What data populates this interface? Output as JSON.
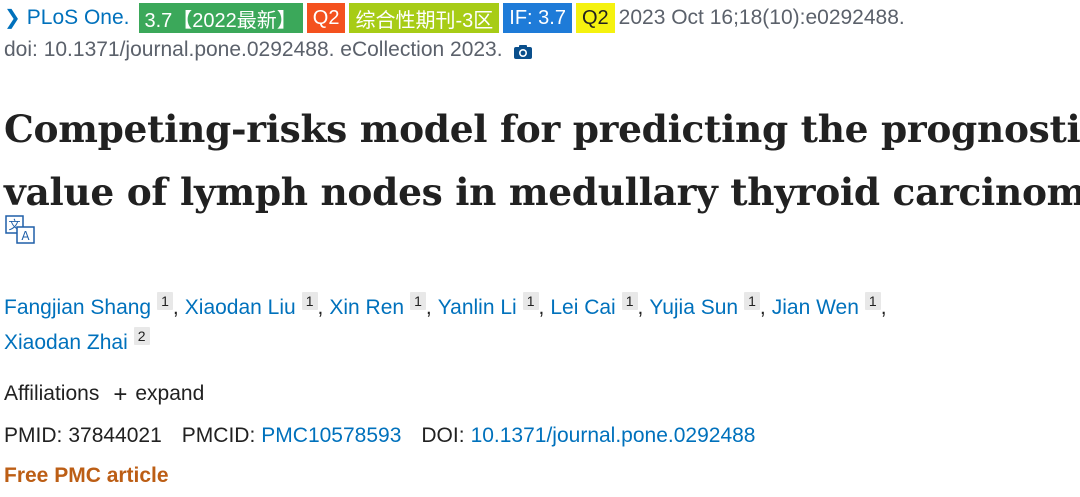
{
  "citation": {
    "chevron_icon": "chevron-right-icon",
    "journal": "PLoS One.",
    "badges": [
      {
        "label": "3.7【2022最新】",
        "color": "#3ba85a"
      },
      {
        "label": "Q2",
        "color": "#f4511e"
      },
      {
        "label": "综合性期刊-3区",
        "color": "#a7cc16"
      },
      {
        "label": "IF: 3.7",
        "color": "#1e7bd8"
      },
      {
        "label": "Q2",
        "color": "#f5f20f"
      }
    ],
    "date_volume": "2023 Oct 16;18(10):e0292488.",
    "doi_line": "doi: 10.1371/journal.pone.0292488. eCollection 2023.",
    "camera_icon": "camera-icon"
  },
  "article": {
    "title_line1": "Competing-risks model for predicting the prognostic",
    "title_line2": "value of lymph nodes in medullary thyroid carcinoma",
    "translate_icon": "translate-icon"
  },
  "authors": [
    {
      "name": "Fangjian Shang",
      "aff": "1"
    },
    {
      "name": "Xiaodan Liu",
      "aff": "1"
    },
    {
      "name": "Xin Ren",
      "aff": "1"
    },
    {
      "name": "Yanlin Li",
      "aff": "1"
    },
    {
      "name": "Lei Cai",
      "aff": "1"
    },
    {
      "name": "Yujia Sun",
      "aff": "1"
    },
    {
      "name": "Jian Wen",
      "aff": "1"
    },
    {
      "name": "Xiaodan Zhai",
      "aff": "2"
    }
  ],
  "affiliations": {
    "label": "Affiliations",
    "expand": "expand"
  },
  "ids": {
    "pmid_label": "PMID:",
    "pmid": "37844021",
    "pmcid_label": "PMCID:",
    "pmcid": "PMC10578593",
    "doi_label": "DOI:",
    "doi": "10.1371/journal.pone.0292488"
  },
  "free_label": "Free PMC article",
  "colors": {
    "link": "#0071bc",
    "free_pmc": "#bc5e15"
  }
}
